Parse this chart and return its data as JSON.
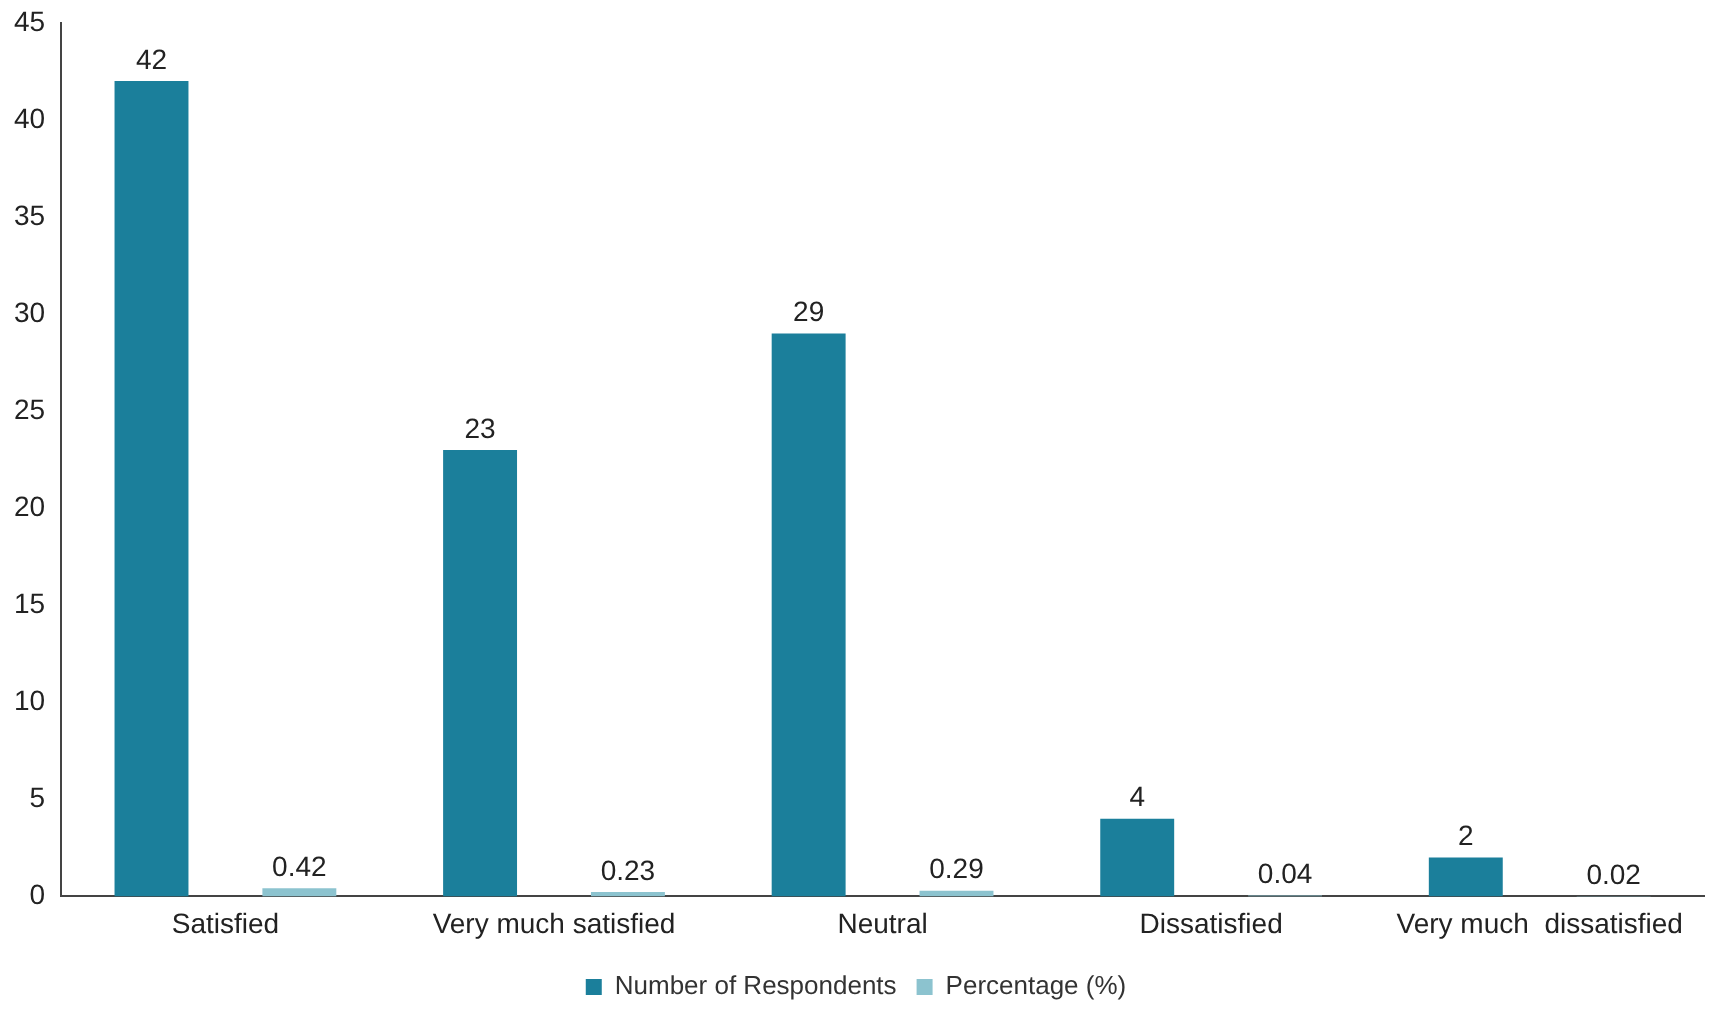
{
  "chart_data": {
    "type": "bar",
    "categories": [
      "Satisfied",
      "Very much satisfied",
      "Neutral",
      "Dissatisfied",
      "Very much  dissatisfied"
    ],
    "series": [
      {
        "name": "Number of Respondents",
        "color": "#1b7f9b",
        "values": [
          42,
          23,
          29,
          4,
          2
        ]
      },
      {
        "name": "Percentage (%)",
        "color": "#8cc3cf",
        "values": [
          0.42,
          0.23,
          0.29,
          0.04,
          0.02
        ]
      }
    ],
    "ylim": [
      0,
      45
    ],
    "yticks": [
      0,
      5,
      10,
      15,
      20,
      25,
      30,
      35,
      40,
      45
    ],
    "grid": false,
    "legend": "bottom",
    "data_labels": true
  }
}
